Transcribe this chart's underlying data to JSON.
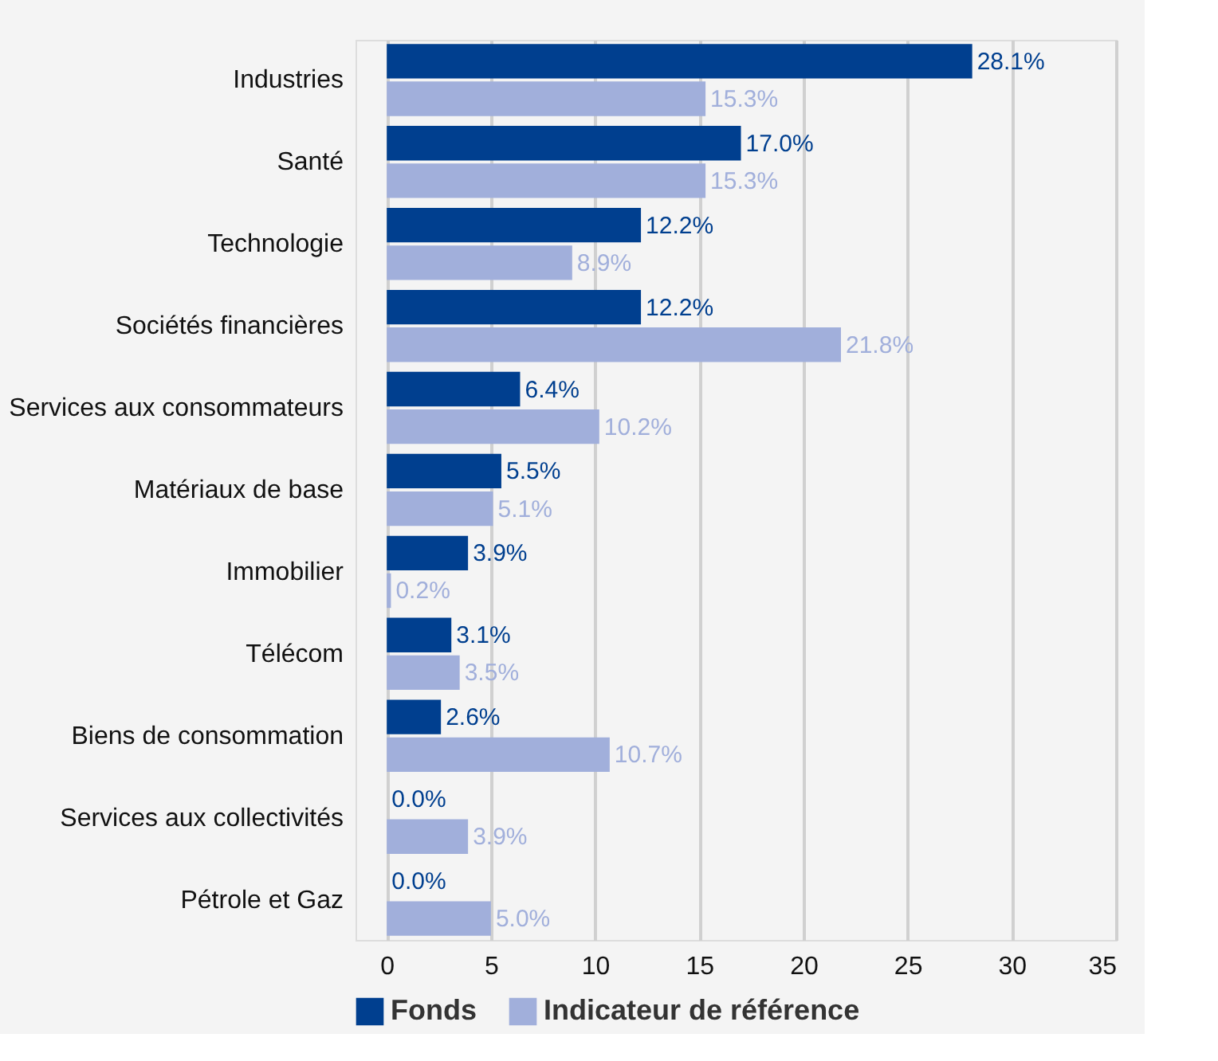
{
  "chart_data": {
    "type": "bar",
    "orientation": "horizontal",
    "categories": [
      "Industries",
      "Santé",
      "Technologie",
      "Sociétés financières",
      "Services aux consommateurs",
      "Matériaux de base",
      "Immobilier",
      "Télécom",
      "Biens de consommation",
      "Services aux collectivités",
      "Pétrole et Gaz"
    ],
    "series": [
      {
        "name": "Fonds",
        "color": "#003f8f",
        "values": [
          28.1,
          17.0,
          12.2,
          12.2,
          6.4,
          5.5,
          3.9,
          3.1,
          2.6,
          0.0,
          0.0
        ],
        "value_labels": [
          "28.1%",
          "17.0%",
          "12.2%",
          "12.2%",
          "6.4%",
          "5.5%",
          "3.9%",
          "3.1%",
          "2.6%",
          "0.0%",
          "0.0%"
        ]
      },
      {
        "name": "Indicateur de référence",
        "color": "#a1afdb",
        "values": [
          15.3,
          15.3,
          8.9,
          21.8,
          10.2,
          5.1,
          0.2,
          3.5,
          10.7,
          3.9,
          5.0
        ],
        "value_labels": [
          "15.3%",
          "15.3%",
          "8.9%",
          "21.8%",
          "10.2%",
          "5.1%",
          "0.2%",
          "3.5%",
          "10.7%",
          "3.9%",
          "5.0%"
        ]
      }
    ],
    "xlim": [
      -1.5,
      35
    ],
    "xticks": [
      0,
      5,
      10,
      15,
      20,
      25,
      30,
      35
    ],
    "grid": "x",
    "legend": "bottom left"
  }
}
